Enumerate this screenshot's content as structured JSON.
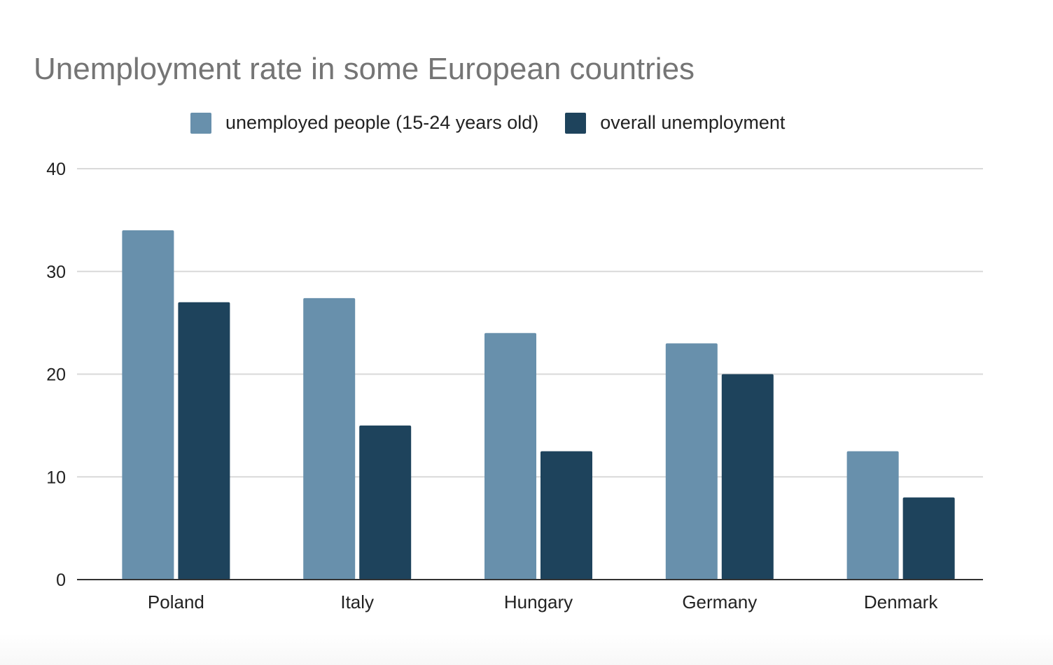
{
  "chart_data": {
    "type": "bar",
    "title": "Unemployment rate in some European countries",
    "categories": [
      "Poland",
      "Italy",
      "Hungary",
      "Germany",
      "Denmark"
    ],
    "series": [
      {
        "name": "unemployed people (15-24 years old)",
        "color": "#6890ac",
        "values": [
          34,
          27.4,
          24,
          23,
          12.5
        ]
      },
      {
        "name": "overall unemployment",
        "color": "#1e435c",
        "values": [
          27,
          15,
          12.5,
          20,
          8
        ]
      }
    ],
    "yticks": [
      0,
      10,
      20,
      30,
      40
    ],
    "ylim": [
      0,
      40
    ],
    "xlabel": "",
    "ylabel": "",
    "grid": true,
    "legend_position": "top"
  }
}
